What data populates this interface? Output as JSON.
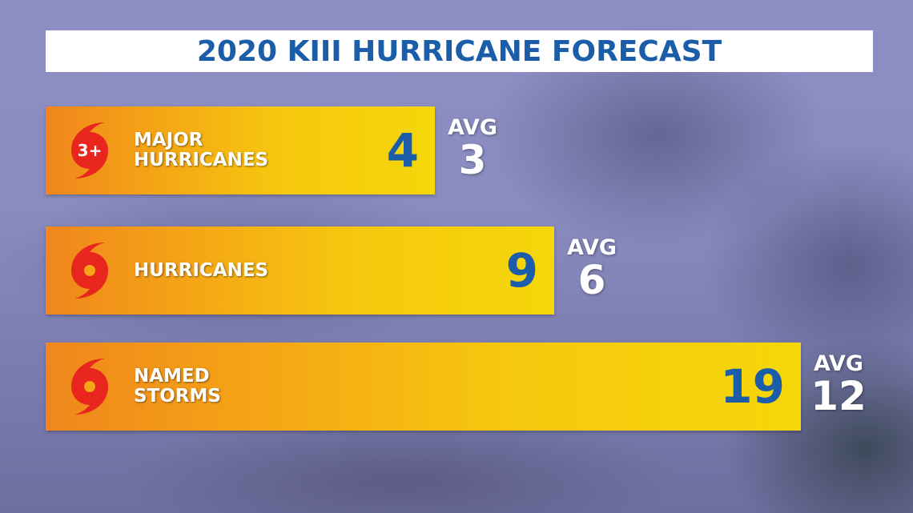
{
  "title": "2020 KIII HURRICANE FORECAST",
  "rows": [
    {
      "icon_label": "3+",
      "label": [
        "MAJOR",
        "HURRICANES"
      ],
      "value": 4,
      "avg_label": "AVG",
      "avg": 3
    },
    {
      "label": [
        "HURRICANES"
      ],
      "value": 9,
      "avg_label": "AVG",
      "avg": 6
    },
    {
      "label": [
        "NAMED",
        "STORMS"
      ],
      "value": 19,
      "avg_label": "AVG",
      "avg": 12
    }
  ]
}
